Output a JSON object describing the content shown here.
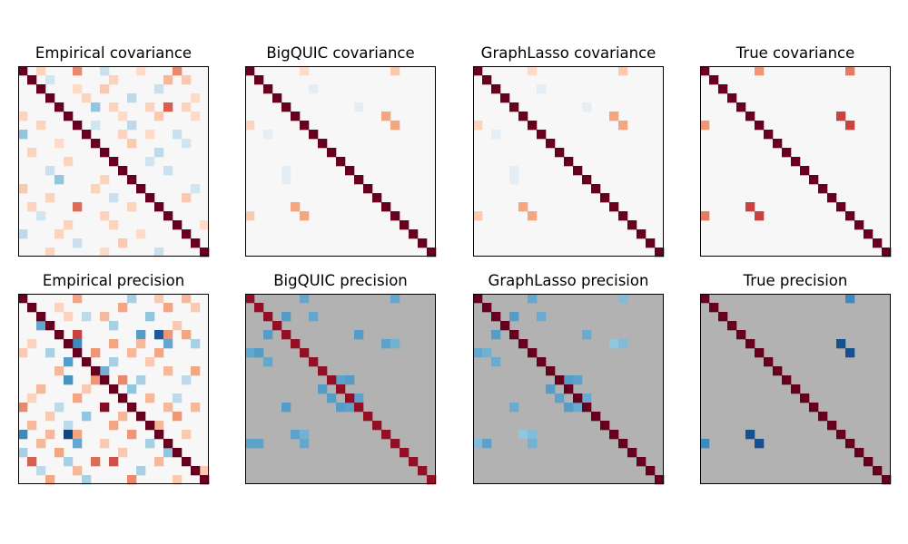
{
  "chart_data": {
    "type": "heatmap",
    "size": 21,
    "colormap": "RdBu_r",
    "panels": [
      {
        "title": "Empirical covariance",
        "diagonal": 1.0,
        "cells": [
          [
            0,
            6,
            0.35
          ],
          [
            0,
            17,
            0.35
          ],
          [
            0,
            2,
            0.12
          ],
          [
            0,
            9,
            -0.12
          ],
          [
            0,
            13,
            0.1
          ],
          [
            1,
            10,
            0.12
          ],
          [
            1,
            16,
            0.2
          ],
          [
            1,
            18,
            0.15
          ],
          [
            1,
            3,
            -0.1
          ],
          [
            2,
            9,
            0.15
          ],
          [
            2,
            15,
            -0.12
          ],
          [
            2,
            6,
            0.1
          ],
          [
            3,
            7,
            0.12
          ],
          [
            3,
            12,
            -0.15
          ],
          [
            3,
            19,
            0.1
          ],
          [
            4,
            8,
            -0.25
          ],
          [
            4,
            14,
            0.12
          ],
          [
            4,
            16,
            0.5
          ],
          [
            4,
            10,
            0.12
          ],
          [
            4,
            18,
            0.12
          ],
          [
            5,
            11,
            0.1
          ],
          [
            5,
            15,
            0.15
          ],
          [
            5,
            19,
            0.1
          ],
          [
            5,
            0,
            0.12
          ],
          [
            6,
            12,
            -0.15
          ],
          [
            6,
            2,
            0.12
          ],
          [
            6,
            8,
            -0.1
          ],
          [
            7,
            11,
            0.12
          ],
          [
            7,
            17,
            -0.12
          ],
          [
            7,
            0,
            -0.25
          ],
          [
            7,
            14,
            0.1
          ],
          [
            8,
            12,
            0.15
          ],
          [
            8,
            18,
            -0.1
          ],
          [
            8,
            4,
            0.1
          ],
          [
            9,
            15,
            -0.15
          ],
          [
            9,
            1,
            0.12
          ],
          [
            10,
            5,
            0.12
          ],
          [
            10,
            14,
            -0.1
          ],
          [
            11,
            3,
            -0.12
          ],
          [
            11,
            16,
            -0.12
          ],
          [
            12,
            4,
            -0.25
          ],
          [
            12,
            9,
            0.12
          ],
          [
            13,
            0,
            0.15
          ],
          [
            13,
            8,
            0.12
          ],
          [
            13,
            19,
            -0.1
          ],
          [
            14,
            3,
            0.12
          ],
          [
            14,
            18,
            0.15
          ],
          [
            14,
            10,
            -0.12
          ],
          [
            15,
            1,
            0.12
          ],
          [
            15,
            6,
            0.45
          ],
          [
            15,
            12,
            0.12
          ],
          [
            16,
            2,
            -0.1
          ],
          [
            16,
            9,
            0.12
          ],
          [
            17,
            5,
            0.12
          ],
          [
            17,
            10,
            0.12
          ],
          [
            17,
            20,
            0.1
          ],
          [
            18,
            0,
            -0.15
          ],
          [
            18,
            4,
            0.12
          ],
          [
            18,
            13,
            0.1
          ],
          [
            19,
            6,
            -0.12
          ],
          [
            19,
            11,
            0.15
          ],
          [
            20,
            3,
            0.12
          ],
          [
            20,
            15,
            -0.12
          ],
          [
            20,
            9,
            0.1
          ]
        ]
      },
      {
        "title": "BigQUIC covariance",
        "diagonal": 1.0,
        "cells": [
          [
            0,
            6,
            0.1
          ],
          [
            0,
            16,
            0.15
          ],
          [
            2,
            7,
            -0.05
          ],
          [
            4,
            12,
            -0.05
          ],
          [
            5,
            15,
            0.25
          ],
          [
            6,
            16,
            0.25
          ],
          [
            6,
            0,
            0.12
          ],
          [
            7,
            2,
            -0.05
          ],
          [
            15,
            5,
            0.25
          ],
          [
            16,
            6,
            0.25
          ],
          [
            16,
            0,
            0.15
          ],
          [
            12,
            4,
            -0.05
          ],
          [
            11,
            4,
            -0.05
          ]
        ]
      },
      {
        "title": "GraphLasso covariance",
        "diagonal": 1.0,
        "cells": [
          [
            0,
            6,
            0.1
          ],
          [
            0,
            16,
            0.15
          ],
          [
            2,
            7,
            -0.05
          ],
          [
            4,
            12,
            -0.05
          ],
          [
            5,
            15,
            0.25
          ],
          [
            6,
            16,
            0.25
          ],
          [
            6,
            0,
            0.12
          ],
          [
            7,
            2,
            -0.05
          ],
          [
            15,
            5,
            0.25
          ],
          [
            16,
            6,
            0.25
          ],
          [
            16,
            0,
            0.15
          ],
          [
            12,
            4,
            -0.05
          ],
          [
            11,
            4,
            -0.05
          ]
        ]
      },
      {
        "title": "True covariance",
        "diagonal": 1.0,
        "cells": [
          [
            0,
            6,
            0.3
          ],
          [
            0,
            16,
            0.4
          ],
          [
            5,
            15,
            0.6
          ],
          [
            6,
            16,
            0.6
          ],
          [
            6,
            0,
            0.3
          ],
          [
            15,
            5,
            0.6
          ],
          [
            16,
            6,
            0.6
          ],
          [
            16,
            0,
            0.4
          ]
        ]
      },
      {
        "title": "Empirical precision",
        "diagonal": 1.0,
        "cells": [
          [
            0,
            6,
            0.25
          ],
          [
            0,
            12,
            -0.2
          ],
          [
            0,
            15,
            0.15
          ],
          [
            0,
            18,
            0.2
          ],
          [
            1,
            4,
            0.12
          ],
          [
            1,
            11,
            0.25
          ],
          [
            1,
            16,
            0.25
          ],
          [
            1,
            19,
            0.15
          ],
          [
            2,
            7,
            -0.15
          ],
          [
            2,
            9,
            0.2
          ],
          [
            2,
            14,
            -0.25
          ],
          [
            2,
            5,
            0.12
          ],
          [
            3,
            10,
            -0.2
          ],
          [
            3,
            17,
            0.15
          ],
          [
            3,
            2,
            -0.4
          ],
          [
            4,
            6,
            0.6
          ],
          [
            4,
            13,
            -0.45
          ],
          [
            4,
            18,
            0.25
          ],
          [
            4,
            15,
            -0.8
          ],
          [
            4,
            16,
            0.3
          ],
          [
            5,
            1,
            0.12
          ],
          [
            5,
            6,
            -0.55
          ],
          [
            5,
            10,
            0.25
          ],
          [
            5,
            13,
            0.2
          ],
          [
            5,
            16,
            -0.4
          ],
          [
            5,
            19,
            -0.2
          ],
          [
            6,
            0,
            0.15
          ],
          [
            6,
            3,
            -0.2
          ],
          [
            6,
            8,
            0.3
          ],
          [
            6,
            12,
            0.2
          ],
          [
            6,
            15,
            0.25
          ],
          [
            7,
            5,
            -0.45
          ],
          [
            7,
            10,
            -0.2
          ],
          [
            7,
            14,
            0.15
          ],
          [
            8,
            4,
            0.2
          ],
          [
            8,
            9,
            -0.35
          ],
          [
            8,
            16,
            0.2
          ],
          [
            8,
            19,
            0.25
          ],
          [
            9,
            5,
            -0.5
          ],
          [
            9,
            8,
            0.3
          ],
          [
            9,
            11,
            0.35
          ],
          [
            9,
            13,
            -0.2
          ],
          [
            9,
            18,
            -0.15
          ],
          [
            10,
            2,
            0.2
          ],
          [
            10,
            7,
            0.15
          ],
          [
            10,
            12,
            -0.25
          ],
          [
            11,
            1,
            0.12
          ],
          [
            11,
            6,
            0.25
          ],
          [
            11,
            14,
            0.2
          ],
          [
            11,
            17,
            -0.15
          ],
          [
            12,
            0,
            0.35
          ],
          [
            12,
            4,
            -0.15
          ],
          [
            12,
            9,
            0.9
          ],
          [
            12,
            16,
            0.2
          ],
          [
            12,
            19,
            0.2
          ],
          [
            13,
            3,
            0.15
          ],
          [
            13,
            7,
            -0.25
          ],
          [
            13,
            11,
            0.2
          ],
          [
            13,
            17,
            0.3
          ],
          [
            14,
            1,
            0.2
          ],
          [
            14,
            5,
            -0.15
          ],
          [
            14,
            10,
            0.25
          ],
          [
            14,
            15,
            0.2
          ],
          [
            15,
            0,
            -0.55
          ],
          [
            15,
            3,
            0.2
          ],
          [
            15,
            5,
            -0.9
          ],
          [
            15,
            6,
            0.25
          ],
          [
            15,
            12,
            0.3
          ],
          [
            15,
            18,
            0.15
          ],
          [
            16,
            2,
            0.2
          ],
          [
            16,
            6,
            -0.4
          ],
          [
            16,
            9,
            0.15
          ],
          [
            16,
            14,
            -0.2
          ],
          [
            17,
            0,
            -0.2
          ],
          [
            17,
            4,
            0.25
          ],
          [
            17,
            11,
            0.15
          ],
          [
            17,
            16,
            -0.25
          ],
          [
            18,
            1,
            0.5
          ],
          [
            18,
            5,
            -0.2
          ],
          [
            18,
            8,
            0.45
          ],
          [
            18,
            10,
            0.55
          ],
          [
            18,
            15,
            0.2
          ],
          [
            19,
            2,
            -0.15
          ],
          [
            19,
            6,
            0.2
          ],
          [
            19,
            13,
            -0.2
          ],
          [
            19,
            20,
            0.15
          ],
          [
            20,
            3,
            0.25
          ],
          [
            20,
            7,
            -0.2
          ],
          [
            20,
            12,
            0.35
          ],
          [
            20,
            17,
            0.15
          ]
        ]
      },
      {
        "title": "BigQUIC precision",
        "diagonal": 0.85,
        "background": 0.0,
        "cells": [
          [
            0,
            6,
            -0.4
          ],
          [
            0,
            16,
            -0.4
          ],
          [
            2,
            4,
            -0.45
          ],
          [
            2,
            7,
            -0.4
          ],
          [
            4,
            2,
            -0.45
          ],
          [
            6,
            0,
            -0.4
          ],
          [
            5,
            15,
            -0.42
          ],
          [
            5,
            16,
            -0.35
          ],
          [
            4,
            12,
            -0.45
          ],
          [
            6,
            1,
            -0.45
          ],
          [
            7,
            2,
            -0.4
          ],
          [
            9,
            11,
            -0.45
          ],
          [
            9,
            10,
            -0.42
          ],
          [
            10,
            8,
            -0.45
          ],
          [
            11,
            9,
            -0.45
          ],
          [
            11,
            12,
            -0.42
          ],
          [
            12,
            4,
            -0.45
          ],
          [
            12,
            11,
            -0.42
          ],
          [
            15,
            5,
            -0.42
          ],
          [
            16,
            6,
            -0.4
          ],
          [
            16,
            0,
            -0.42
          ],
          [
            16,
            1,
            -0.42
          ],
          [
            12,
            10,
            -0.45
          ],
          [
            15,
            6,
            -0.35
          ]
        ]
      },
      {
        "title": "GraphLasso precision",
        "diagonal": 1.0,
        "background": 0.0,
        "cells": [
          [
            0,
            6,
            -0.4
          ],
          [
            0,
            16,
            -0.3
          ],
          [
            2,
            4,
            -0.45
          ],
          [
            2,
            7,
            -0.38
          ],
          [
            4,
            2,
            -0.45
          ],
          [
            6,
            0,
            -0.4
          ],
          [
            5,
            15,
            -0.25
          ],
          [
            5,
            16,
            -0.3
          ],
          [
            4,
            12,
            -0.38
          ],
          [
            6,
            1,
            -0.35
          ],
          [
            7,
            2,
            -0.38
          ],
          [
            9,
            11,
            -0.42
          ],
          [
            9,
            10,
            -0.45
          ],
          [
            10,
            8,
            -0.45
          ],
          [
            11,
            9,
            -0.42
          ],
          [
            11,
            12,
            -0.38
          ],
          [
            12,
            4,
            -0.38
          ],
          [
            12,
            11,
            -0.38
          ],
          [
            15,
            5,
            -0.25
          ],
          [
            16,
            6,
            -0.35
          ],
          [
            16,
            0,
            -0.3
          ],
          [
            16,
            1,
            -0.42
          ],
          [
            12,
            10,
            -0.45
          ],
          [
            15,
            6,
            -0.3
          ]
        ]
      },
      {
        "title": "True precision",
        "diagonal": 1.0,
        "background": 0.0,
        "cells": [
          [
            0,
            16,
            -0.55
          ],
          [
            16,
            0,
            -0.55
          ],
          [
            5,
            15,
            -0.85
          ],
          [
            6,
            16,
            -0.85
          ],
          [
            15,
            5,
            -0.85
          ],
          [
            16,
            6,
            -0.85
          ]
        ]
      }
    ]
  }
}
